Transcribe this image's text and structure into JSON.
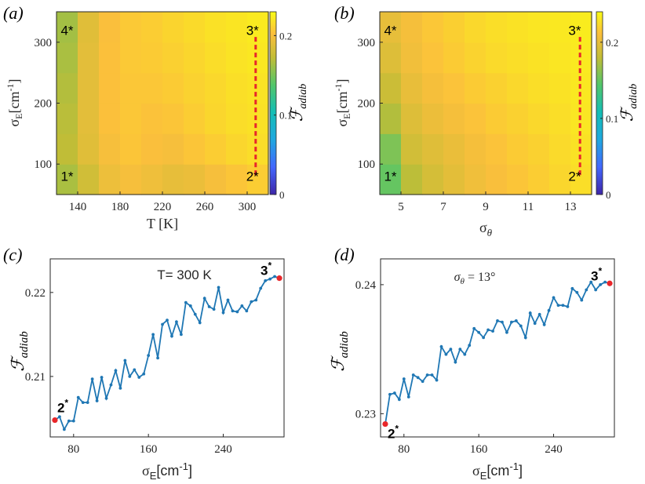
{
  "chart_data": [
    {
      "id": "a",
      "type": "heatmap",
      "panel_label": "(a)",
      "xlabel": "T [K]",
      "ylabel_main": "σ",
      "ylabel_sub": "E",
      "ylabel_unit": "[cm",
      "ylabel_sup": "-1",
      "ylabel_close": "]",
      "xlim": [
        120,
        320
      ],
      "ylim": [
        50,
        350
      ],
      "xticks": [
        140,
        180,
        220,
        260,
        300
      ],
      "yticks": [
        100,
        200,
        300
      ],
      "cols": 10,
      "rows": 6,
      "values": [
        [
          0.165,
          0.18,
          0.195,
          0.2,
          0.196,
          0.192,
          0.194,
          0.2,
          0.205,
          0.209
        ],
        [
          0.172,
          0.188,
          0.2,
          0.205,
          0.202,
          0.2,
          0.205,
          0.209,
          0.213,
          0.216
        ],
        [
          0.17,
          0.19,
          0.203,
          0.206,
          0.204,
          0.205,
          0.209,
          0.213,
          0.216,
          0.218
        ],
        [
          0.168,
          0.19,
          0.203,
          0.206,
          0.206,
          0.208,
          0.211,
          0.214,
          0.217,
          0.219
        ],
        [
          0.165,
          0.19,
          0.203,
          0.207,
          0.208,
          0.21,
          0.213,
          0.216,
          0.219,
          0.221
        ],
        [
          0.163,
          0.188,
          0.202,
          0.207,
          0.209,
          0.212,
          0.215,
          0.218,
          0.22,
          0.222
        ]
      ],
      "colorbar": {
        "ticks": [
          0,
          0.1,
          0.2
        ],
        "tick_labels": [
          "0",
          "0.1",
          "0.2"
        ],
        "clim": [
          0,
          0.23
        ],
        "label": "ℱ",
        "label_sub": "adiab"
      },
      "markers": [
        {
          "label": "4*",
          "x": 130,
          "y": 320
        },
        {
          "label": "3*",
          "x": 305,
          "y": 320
        },
        {
          "label": "1*",
          "x": 130,
          "y": 80
        },
        {
          "label": "2*",
          "x": 305,
          "y": 80
        }
      ],
      "dashed_line": {
        "x": 308,
        "y0": 82,
        "y1": 312,
        "color": "#e8262a"
      }
    },
    {
      "id": "b",
      "type": "heatmap",
      "panel_label": "(b)",
      "xlabel": "σ",
      "xlabel_sub": "θ",
      "ylabel_main": "σ",
      "ylabel_sub": "E",
      "ylabel_unit": "[cm",
      "ylabel_sup": "-1",
      "ylabel_close": "]",
      "xlim": [
        4.0,
        14.0
      ],
      "ylim": [
        50,
        350
      ],
      "xticks": [
        5,
        7,
        9,
        11,
        13
      ],
      "yticks": [
        100,
        200,
        300
      ],
      "cols": 10,
      "rows": 6,
      "values": [
        [
          0.15,
          0.178,
          0.19,
          0.198,
          0.205,
          0.21,
          0.214,
          0.218,
          0.222,
          0.226
        ],
        [
          0.158,
          0.188,
          0.196,
          0.202,
          0.208,
          0.213,
          0.217,
          0.22,
          0.224,
          0.228
        ],
        [
          0.175,
          0.195,
          0.203,
          0.208,
          0.213,
          0.217,
          0.22,
          0.223,
          0.226,
          0.23
        ],
        [
          0.185,
          0.201,
          0.208,
          0.213,
          0.217,
          0.22,
          0.223,
          0.226,
          0.228,
          0.231
        ],
        [
          0.195,
          0.206,
          0.213,
          0.217,
          0.221,
          0.224,
          0.226,
          0.228,
          0.23,
          0.232
        ],
        [
          0.2,
          0.208,
          0.215,
          0.219,
          0.223,
          0.226,
          0.228,
          0.23,
          0.231,
          0.233
        ]
      ],
      "colorbar": {
        "ticks": [
          0,
          0.1,
          0.2
        ],
        "tick_labels": [
          "0",
          "0.1",
          "0.2"
        ],
        "clim": [
          0,
          0.24
        ],
        "label": "ℱ",
        "label_sub": "adiab"
      },
      "markers": [
        {
          "label": "4*",
          "x": 4.5,
          "y": 320
        },
        {
          "label": "3*",
          "x": 13.2,
          "y": 320
        },
        {
          "label": "1*",
          "x": 4.5,
          "y": 80
        },
        {
          "label": "2*",
          "x": 13.2,
          "y": 80
        }
      ],
      "dashed_line": {
        "x": 13.45,
        "y0": 82,
        "y1": 312,
        "color": "#e8262a"
      }
    },
    {
      "id": "c",
      "type": "line",
      "panel_label": "(c)",
      "title": "T= 300 K",
      "xlabel_main": "σ",
      "xlabel_sub": "E",
      "xlabel_unit": "[cm",
      "xlabel_sup": "-1",
      "xlabel_close": "]",
      "ylabel": "ℱ",
      "ylabel_sub": "adiab",
      "xlim": [
        55,
        305
      ],
      "ylim": [
        0.2028,
        0.224
      ],
      "xticks": [
        80,
        160,
        240
      ],
      "yticks": [
        0.21,
        0.22
      ],
      "ytick_labels": [
        "0.21",
        "0.22"
      ],
      "color": "#1f77b4",
      "x": [
        60,
        65,
        70,
        75,
        80,
        85,
        90,
        95,
        100,
        105,
        110,
        115,
        120,
        125,
        130,
        135,
        140,
        145,
        150,
        155,
        160,
        165,
        170,
        175,
        180,
        185,
        190,
        195,
        200,
        205,
        210,
        215,
        220,
        225,
        230,
        235,
        240,
        245,
        250,
        255,
        260,
        265,
        270,
        275,
        280,
        285,
        290,
        295,
        300
      ],
      "values": [
        0.2048,
        0.2052,
        0.2037,
        0.2047,
        0.2047,
        0.2075,
        0.2069,
        0.2069,
        0.2097,
        0.2071,
        0.2099,
        0.2074,
        0.209,
        0.2107,
        0.2086,
        0.2119,
        0.21,
        0.2108,
        0.2099,
        0.2103,
        0.2125,
        0.215,
        0.2122,
        0.2162,
        0.2167,
        0.2148,
        0.2165,
        0.215,
        0.2188,
        0.2184,
        0.2174,
        0.2164,
        0.2193,
        0.2183,
        0.218,
        0.2206,
        0.2176,
        0.2191,
        0.2178,
        0.2177,
        0.2184,
        0.2178,
        0.2189,
        0.2191,
        0.2205,
        0.2214,
        0.2216,
        0.2219,
        0.2217
      ],
      "endpoints": [
        {
          "label": "2",
          "sup": "*",
          "x": 60,
          "y": 0.2048,
          "color": "#e8262a"
        },
        {
          "label": "3",
          "sup": "*",
          "x": 300,
          "y": 0.2217,
          "color": "#e8262a"
        }
      ]
    },
    {
      "id": "d",
      "type": "line",
      "panel_label": "(d)",
      "title_main": "σ",
      "title_sub": "θ",
      "title_rest": " = 13°",
      "xlabel_main": "σ",
      "xlabel_sub": "E",
      "xlabel_unit": "[cm",
      "xlabel_sup": "-1",
      "xlabel_close": "]",
      "ylabel": "ℱ",
      "ylabel_sub": "adiab",
      "xlim": [
        55,
        305
      ],
      "ylim": [
        0.2282,
        0.242
      ],
      "xticks": [
        80,
        160,
        240
      ],
      "yticks": [
        0.23,
        0.24
      ],
      "ytick_labels": [
        "0.23",
        "0.24"
      ],
      "color": "#1f77b4",
      "x": [
        60,
        65,
        70,
        75,
        80,
        85,
        90,
        95,
        100,
        105,
        110,
        115,
        120,
        125,
        130,
        135,
        140,
        145,
        150,
        155,
        160,
        165,
        170,
        175,
        180,
        185,
        190,
        195,
        200,
        205,
        210,
        215,
        220,
        225,
        230,
        235,
        240,
        245,
        250,
        255,
        260,
        265,
        270,
        275,
        280,
        285,
        290,
        295,
        300
      ],
      "values": [
        0.2292,
        0.2315,
        0.2316,
        0.2311,
        0.2327,
        0.2313,
        0.233,
        0.2328,
        0.2325,
        0.233,
        0.233,
        0.2326,
        0.2352,
        0.2346,
        0.235,
        0.234,
        0.235,
        0.2346,
        0.2353,
        0.2366,
        0.2363,
        0.2359,
        0.2365,
        0.2364,
        0.2372,
        0.2371,
        0.2363,
        0.2371,
        0.2372,
        0.2368,
        0.2359,
        0.2378,
        0.237,
        0.2377,
        0.2369,
        0.238,
        0.239,
        0.2384,
        0.2384,
        0.2383,
        0.2397,
        0.2394,
        0.2388,
        0.2396,
        0.2402,
        0.2396,
        0.24,
        0.2402,
        0.2401
      ],
      "endpoints": [
        {
          "label": "2",
          "sup": "*",
          "x": 60,
          "y": 0.2292,
          "color": "#e8262a"
        },
        {
          "label": "3",
          "sup": "*",
          "x": 300,
          "y": 0.2401,
          "color": "#e8262a"
        }
      ]
    }
  ]
}
